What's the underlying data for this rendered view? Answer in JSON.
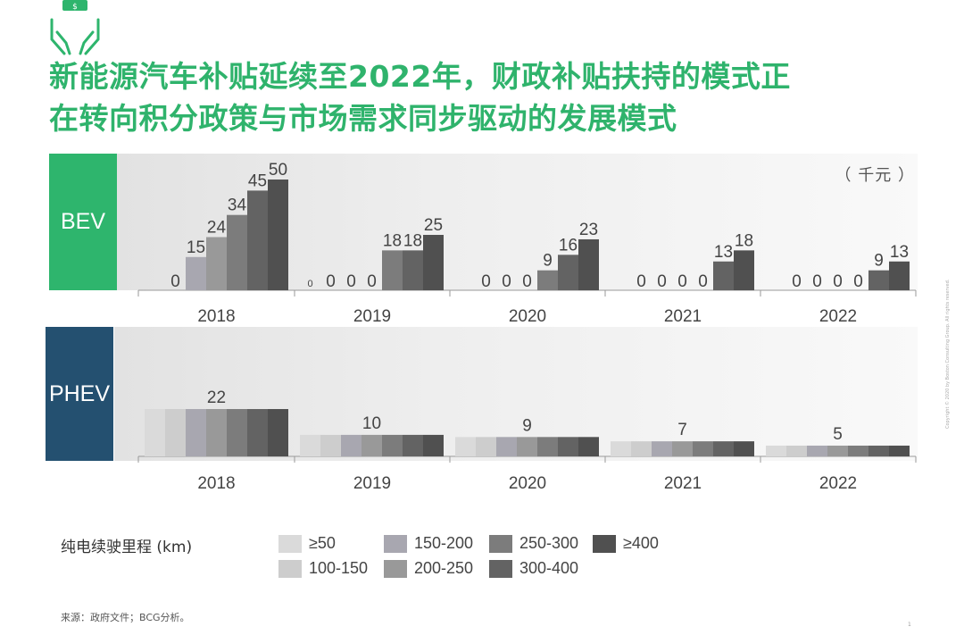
{
  "title": {
    "line1": "新能源汽车补贴延续至2022年，财政补贴扶持的模式正",
    "line2": "在转向积分政策与市场需求同步驱动的发展模式"
  },
  "unit": "（ 千元 ）",
  "colors": {
    "title": "#2fb36c",
    "bev_label": "#2eb56d",
    "phev_label": "#245070",
    "ranges": [
      "#dadada",
      "#cdcdcd",
      "#a8a7b0",
      "#999999",
      "#7c7c7c",
      "#636363",
      "#505050"
    ]
  },
  "icons": {
    "logo": "hands-holding-money-icon"
  },
  "chart_data": [
    {
      "type": "bar",
      "name": "BEV",
      "side_label": "BEV",
      "categories": [
        "2018",
        "2019",
        "2020",
        "2021",
        "2022"
      ],
      "series": [
        {
          "name": "≥50",
          "values": [
            null,
            0,
            null,
            null,
            null
          ]
        },
        {
          "name": "100-150",
          "values": [
            0,
            0,
            0,
            0,
            0
          ]
        },
        {
          "name": "150-200",
          "values": [
            15,
            0,
            0,
            0,
            0
          ]
        },
        {
          "name": "200-250",
          "values": [
            24,
            0,
            0,
            0,
            0
          ]
        },
        {
          "name": "250-300",
          "values": [
            34,
            18,
            9,
            0,
            0
          ]
        },
        {
          "name": "300-400",
          "values": [
            45,
            18,
            16,
            13,
            9
          ]
        },
        {
          "name": "≥400",
          "values": [
            50,
            25,
            23,
            18,
            13
          ]
        }
      ],
      "ylim": [
        0,
        50
      ]
    },
    {
      "type": "bar",
      "name": "PHEV",
      "side_label": "PHEV",
      "categories": [
        "2018",
        "2019",
        "2020",
        "2021",
        "2022"
      ],
      "values": [
        22,
        10,
        9,
        7,
        5
      ],
      "ylim": [
        0,
        22
      ]
    }
  ],
  "legend": {
    "title": "纯电续驶里程 (km)",
    "items": [
      {
        "label": "≥50",
        "color": "#dadada"
      },
      {
        "label": "100-150",
        "color": "#cdcdcd"
      },
      {
        "label": "150-200",
        "color": "#a8a7b0"
      },
      {
        "label": "200-250",
        "color": "#999999"
      },
      {
        "label": "250-300",
        "color": "#7c7c7c"
      },
      {
        "label": "300-400",
        "color": "#636363"
      },
      {
        "label": "≥400",
        "color": "#505050"
      }
    ]
  },
  "source": "来源：政府文件；BCG分析。",
  "copyright": "Copyright © 2020 by Boston Consulting Group. All rights reserved.",
  "page_number": "1"
}
